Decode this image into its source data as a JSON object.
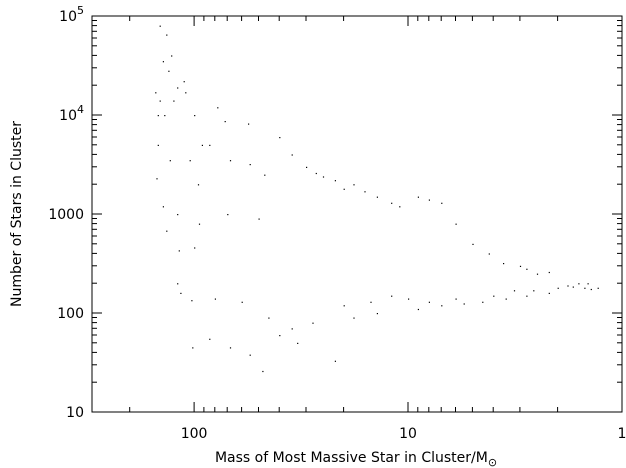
{
  "chart_data": {
    "type": "scatter",
    "title": "",
    "xlabel": "Mass of Most Massive Star in Cluster/M",
    "xlabel_symbol": "⊙",
    "ylabel": "Number of Stars in Cluster",
    "x_scale": "log",
    "x_reversed": true,
    "xlim": [
      300,
      1
    ],
    "y_scale": "log",
    "ylim": [
      10,
      100000
    ],
    "grid": false,
    "x_ticks": [
      {
        "value": 100,
        "label": "100"
      },
      {
        "value": 10,
        "label": "10"
      },
      {
        "value": 1,
        "label": "1"
      }
    ],
    "y_ticks": [
      {
        "value": 10,
        "base": "10",
        "exp": ""
      },
      {
        "value": 100,
        "base": "100",
        "exp": ""
      },
      {
        "value": 1000,
        "base": "1000",
        "exp": ""
      },
      {
        "value": 10000,
        "base": "10",
        "exp": "4"
      },
      {
        "value": 100000,
        "base": "10",
        "exp": "5"
      }
    ],
    "series": [
      {
        "marker_color": "#000000",
        "points": [
          [
            145,
            80000
          ],
          [
            135,
            65000
          ],
          [
            128,
            40000
          ],
          [
            140,
            35000
          ],
          [
            132,
            28000
          ],
          [
            112,
            22000
          ],
          [
            120,
            19000
          ],
          [
            110,
            17000
          ],
          [
            152,
            17000
          ],
          [
            145,
            14000
          ],
          [
            125,
            14000
          ],
          [
            78,
            12000
          ],
          [
            148,
            10000
          ],
          [
            138,
            10000
          ],
          [
            100,
            10000
          ],
          [
            72,
            8700
          ],
          [
            56,
            8200
          ],
          [
            148,
            5000
          ],
          [
            92,
            5000
          ],
          [
            85,
            5000
          ],
          [
            130,
            3500
          ],
          [
            105,
            3500
          ],
          [
            68,
            3500
          ],
          [
            55,
            3200
          ],
          [
            47,
            2500
          ],
          [
            150,
            2300
          ],
          [
            96,
            2000
          ],
          [
            140,
            1200
          ],
          [
            95,
            800
          ],
          [
            120,
            1000
          ],
          [
            70,
            1000
          ],
          [
            50,
            900
          ],
          [
            40,
            6000
          ],
          [
            35,
            4000
          ],
          [
            30,
            3000
          ],
          [
            27,
            2600
          ],
          [
            25,
            2400
          ],
          [
            22,
            2200
          ],
          [
            20,
            1800
          ],
          [
            18,
            2000
          ],
          [
            16,
            1700
          ],
          [
            14,
            1500
          ],
          [
            12,
            1300
          ],
          [
            11,
            1200
          ],
          [
            9,
            1500
          ],
          [
            8,
            1400
          ],
          [
            7,
            1300
          ],
          [
            6,
            800
          ],
          [
            5,
            500
          ],
          [
            4.2,
            400
          ],
          [
            3.6,
            320
          ],
          [
            3.0,
            300
          ],
          [
            2.8,
            280
          ],
          [
            2.5,
            250
          ],
          [
            2.2,
            260
          ],
          [
            1.8,
            190
          ],
          [
            1.7,
            185
          ],
          [
            1.5,
            180
          ],
          [
            1.4,
            175
          ],
          [
            1.3,
            180
          ],
          [
            118,
            430
          ],
          [
            100,
            460
          ],
          [
            135,
            680
          ],
          [
            120,
            200
          ],
          [
            116,
            160
          ],
          [
            103,
            135
          ],
          [
            102,
            45
          ],
          [
            85,
            55
          ],
          [
            68,
            45
          ],
          [
            55,
            38
          ],
          [
            48,
            26
          ],
          [
            40,
            60
          ],
          [
            33,
            50
          ],
          [
            22,
            33
          ],
          [
            80,
            140
          ],
          [
            60,
            130
          ],
          [
            45,
            90
          ],
          [
            35,
            70
          ],
          [
            28,
            80
          ],
          [
            18,
            90
          ],
          [
            14,
            100
          ],
          [
            9,
            110
          ],
          [
            7,
            120
          ],
          [
            5.5,
            125
          ],
          [
            4.5,
            130
          ],
          [
            3.5,
            140
          ],
          [
            2.8,
            150
          ],
          [
            2.2,
            160
          ],
          [
            20,
            120
          ],
          [
            15,
            130
          ],
          [
            12,
            150
          ],
          [
            10,
            140
          ],
          [
            8,
            130
          ],
          [
            6,
            140
          ],
          [
            4,
            150
          ],
          [
            3.2,
            170
          ],
          [
            2.6,
            170
          ],
          [
            2.0,
            180
          ],
          [
            1.6,
            200
          ],
          [
            1.45,
            200
          ]
        ]
      }
    ]
  }
}
